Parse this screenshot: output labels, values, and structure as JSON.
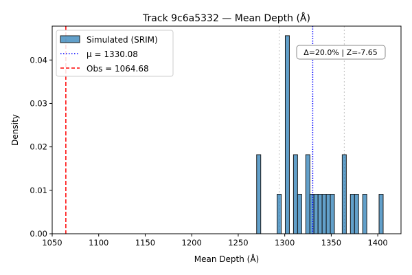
{
  "chart_data": {
    "type": "histogram",
    "title": "Track 9c6a5332 — Mean Depth (Å)",
    "xlabel": "Mean Depth (Å)",
    "ylabel": "Density",
    "xlim": [
      1050,
      1425
    ],
    "ylim": [
      0,
      0.0478
    ],
    "xticks": [
      1050,
      1100,
      1150,
      1200,
      1250,
      1300,
      1350,
      1400
    ],
    "yticks": [
      0.0,
      0.01,
      0.02,
      0.03,
      0.04
    ],
    "ytick_labels": [
      "0.00",
      "0.01",
      "0.02",
      "0.03",
      "0.04"
    ],
    "bin_width": 4.4,
    "bins": [
      {
        "x0": 1269.8,
        "x1": 1274.2,
        "density": 0.0182
      },
      {
        "x0": 1291.8,
        "x1": 1296.2,
        "density": 0.0091
      },
      {
        "x0": 1300.6,
        "x1": 1305.0,
        "density": 0.0456
      },
      {
        "x0": 1309.4,
        "x1": 1313.8,
        "density": 0.0182
      },
      {
        "x0": 1313.8,
        "x1": 1318.2,
        "density": 0.0091
      },
      {
        "x0": 1322.6,
        "x1": 1327.0,
        "density": 0.0182
      },
      {
        "x0": 1327.0,
        "x1": 1331.4,
        "density": 0.0091
      },
      {
        "x0": 1331.4,
        "x1": 1335.8,
        "density": 0.0091
      },
      {
        "x0": 1335.8,
        "x1": 1340.2,
        "density": 0.0091
      },
      {
        "x0": 1340.2,
        "x1": 1344.6,
        "density": 0.0091
      },
      {
        "x0": 1344.6,
        "x1": 1349.0,
        "density": 0.0091
      },
      {
        "x0": 1349.0,
        "x1": 1353.4,
        "density": 0.0091
      },
      {
        "x0": 1361.8,
        "x1": 1366.2,
        "density": 0.0182
      },
      {
        "x0": 1370.6,
        "x1": 1375.0,
        "density": 0.0091
      },
      {
        "x0": 1375.0,
        "x1": 1379.4,
        "density": 0.0091
      },
      {
        "x0": 1383.8,
        "x1": 1388.2,
        "density": 0.0091
      },
      {
        "x0": 1401.4,
        "x1": 1405.8,
        "density": 0.0091
      }
    ],
    "vlines": [
      {
        "name": "mean",
        "x": 1330.08,
        "color": "#0000ff",
        "style": "dotted"
      },
      {
        "name": "observed",
        "x": 1064.68,
        "color": "#ff0000",
        "style": "dashed"
      },
      {
        "name": "ci-low",
        "x": 1294.0,
        "color": "#bfbfbf",
        "style": "dotted"
      },
      {
        "name": "ci-high",
        "x": 1364.0,
        "color": "#bfbfbf",
        "style": "dotted"
      }
    ],
    "legend": {
      "position": "top-left",
      "entries": [
        {
          "label": "Simulated (SRIM)",
          "kind": "patch",
          "color": "#1f77b4"
        },
        {
          "label": "μ = 1330.08",
          "kind": "line",
          "color": "#0000ff",
          "style": "dotted"
        },
        {
          "label": "Obs = 1064.68",
          "kind": "line",
          "color": "#ff0000",
          "style": "dashed"
        }
      ]
    },
    "annotation": "Δ=20.0% | Z=-7.65",
    "colors": {
      "bar_fill": "#1f77b4",
      "bar_edge": "#1a1a1a"
    }
  }
}
